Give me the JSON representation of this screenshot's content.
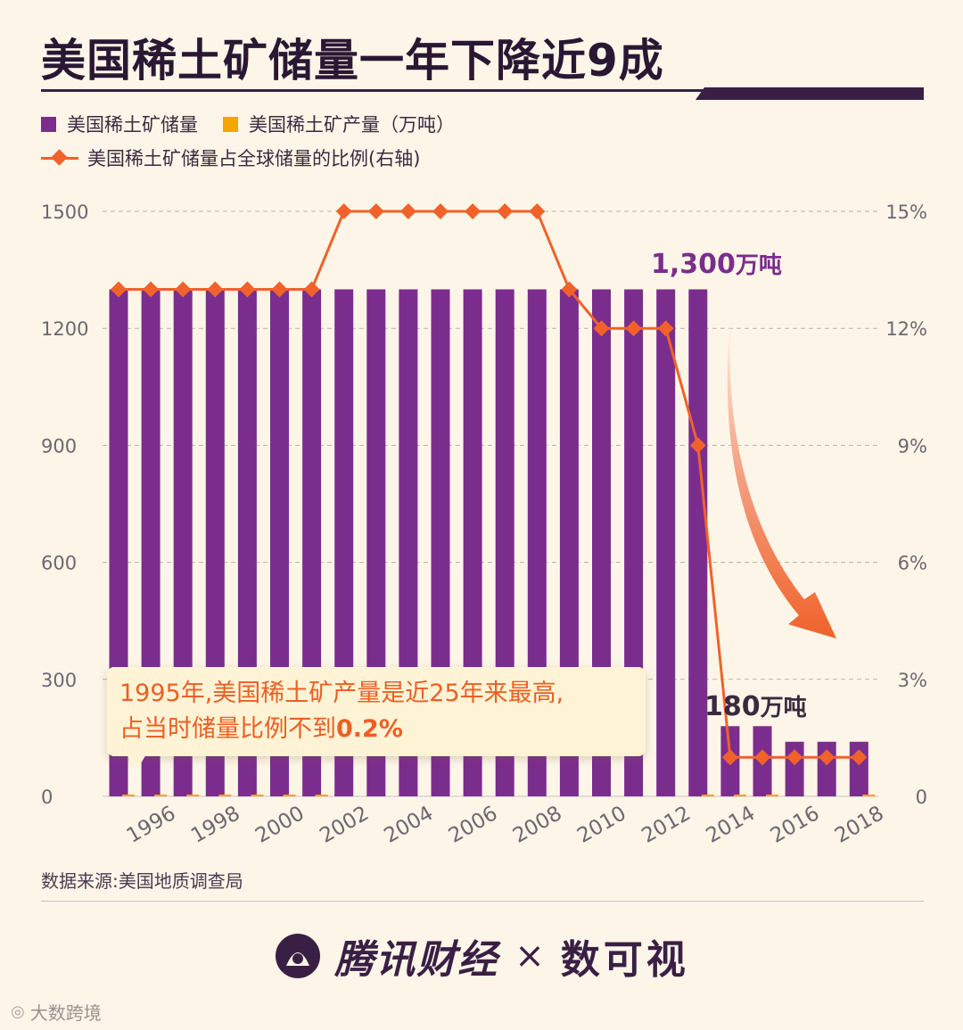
{
  "title": "美国稀土矿储量一年下降近9成",
  "legend": {
    "reserves": "美国稀土矿储量",
    "production": "美国稀土矿产量（万吨）",
    "share": "美国稀土矿储量占全球储量的比例(右轴)"
  },
  "colors": {
    "background": "#fdf6e8",
    "reserves": "#7b2d8e",
    "production": "#f5a400",
    "share": "#f0622a",
    "title": "#2a1733"
  },
  "annotations": {
    "peak_label_value": "1,300",
    "peak_label_unit": "万吨",
    "low_label_value": "180",
    "low_label_unit": "万吨",
    "callout_line1": "1995年,美国稀土矿产量是近25年来最高,",
    "callout_line2_text": "占当时储量比例不到",
    "callout_line2_value": "0.2%"
  },
  "source": "数据来源:美国地质调查局",
  "brand": {
    "name": "腾讯财经",
    "separator": "×",
    "partner": "数可视"
  },
  "corner_mark": "大数跨境",
  "chart_data": {
    "type": "bar",
    "x": [
      1995,
      1996,
      1997,
      1998,
      1999,
      2000,
      2001,
      2002,
      2003,
      2004,
      2005,
      2006,
      2007,
      2008,
      2009,
      2010,
      2011,
      2012,
      2013,
      2014,
      2015,
      2016,
      2017,
      2018
    ],
    "x_tick_labels": [
      "1996",
      "1998",
      "2000",
      "2002",
      "2004",
      "2006",
      "2008",
      "2010",
      "2012",
      "2014",
      "2016",
      "2018"
    ],
    "series": [
      {
        "name": "美国稀土矿储量",
        "type": "bar",
        "axis": "left",
        "values": [
          1300,
          1300,
          1300,
          1300,
          1300,
          1300,
          1300,
          1300,
          1300,
          1300,
          1300,
          1300,
          1300,
          1300,
          1300,
          1300,
          1300,
          1300,
          1300,
          180,
          180,
          140,
          140,
          140
        ]
      },
      {
        "name": "美国稀土矿产量（万吨）",
        "type": "bar",
        "axis": "left",
        "values": [
          2,
          2,
          1,
          1,
          0.5,
          0.5,
          0.5,
          0,
          0,
          0,
          0,
          0,
          0,
          0,
          0,
          0,
          0,
          0,
          0.4,
          0.4,
          0.4,
          0,
          0,
          0.3
        ]
      },
      {
        "name": "美国稀土矿储量占全球储量的比例(右轴)",
        "type": "line",
        "axis": "right",
        "unit": "%",
        "values": [
          13,
          13,
          13,
          13,
          13,
          13,
          13,
          15,
          15,
          15,
          15,
          15,
          15,
          15,
          13,
          12,
          12,
          12,
          9,
          1,
          1,
          1,
          1,
          1
        ]
      }
    ],
    "left_axis": {
      "ticks": [
        "0",
        "300",
        "600",
        "900",
        "1200",
        "1500"
      ],
      "ylim": [
        0,
        1500
      ]
    },
    "right_axis": {
      "ticks": [
        "0",
        "3%",
        "6%",
        "9%",
        "12%",
        "15%"
      ],
      "ylim": [
        0,
        15
      ]
    },
    "grid": "dashed horizontal"
  }
}
